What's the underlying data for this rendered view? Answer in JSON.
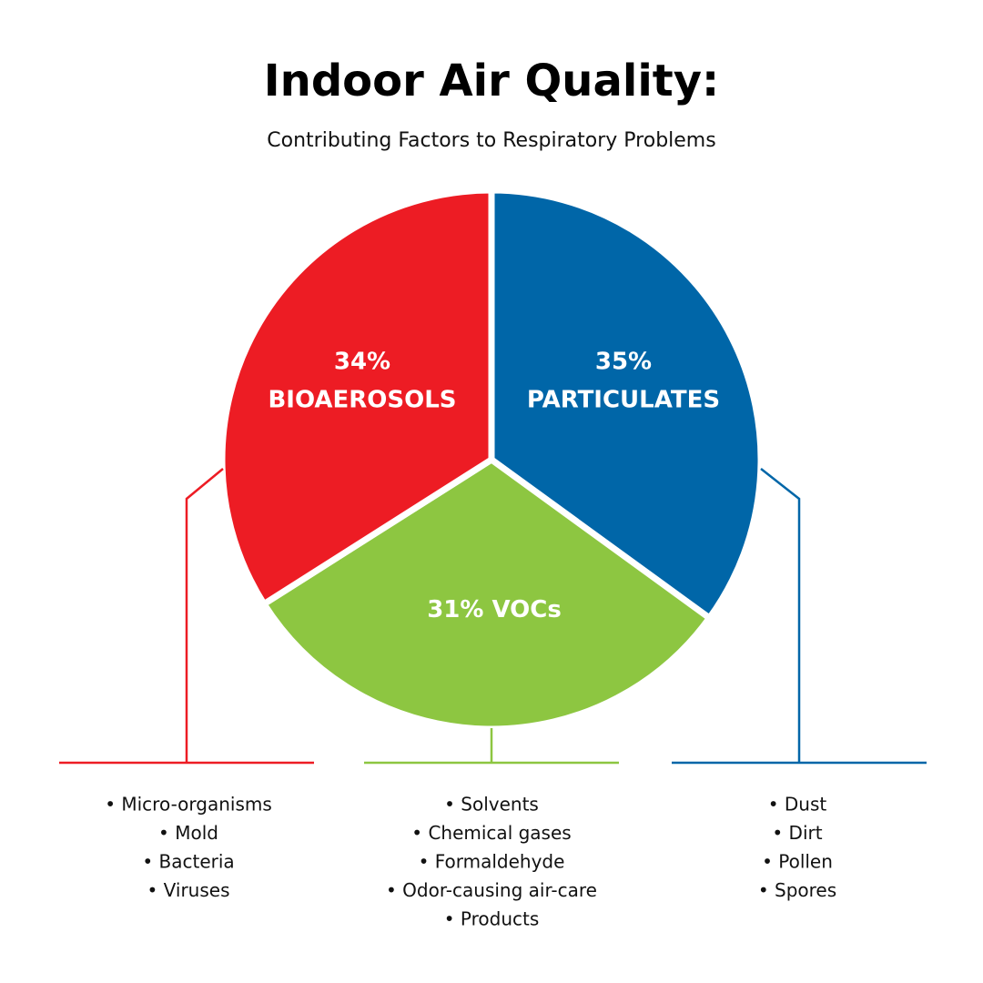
{
  "chart_data": {
    "type": "pie",
    "title": "Indoor Air Quality:",
    "subtitle": "Contributing Factors to Respiratory Problems",
    "categories": [
      "PARTICULATES",
      "VOCs",
      "BIOAEROSOLS"
    ],
    "values": [
      35,
      31,
      34
    ],
    "value_labels": [
      "35%",
      "31%",
      "34%"
    ],
    "colors": [
      "#0066a8",
      "#8dc641",
      "#ed1c24"
    ],
    "details": [
      [
        "• Dust",
        "• Dirt",
        "• Pollen",
        "• Spores"
      ],
      [
        "• Solvents",
        "• Chemical gases",
        "• Formaldehyde",
        "• Odor-causing air-care",
        "• Products"
      ],
      [
        "• Micro-organisms",
        "• Mold",
        "• Bacteria",
        "• Viruses"
      ]
    ]
  }
}
